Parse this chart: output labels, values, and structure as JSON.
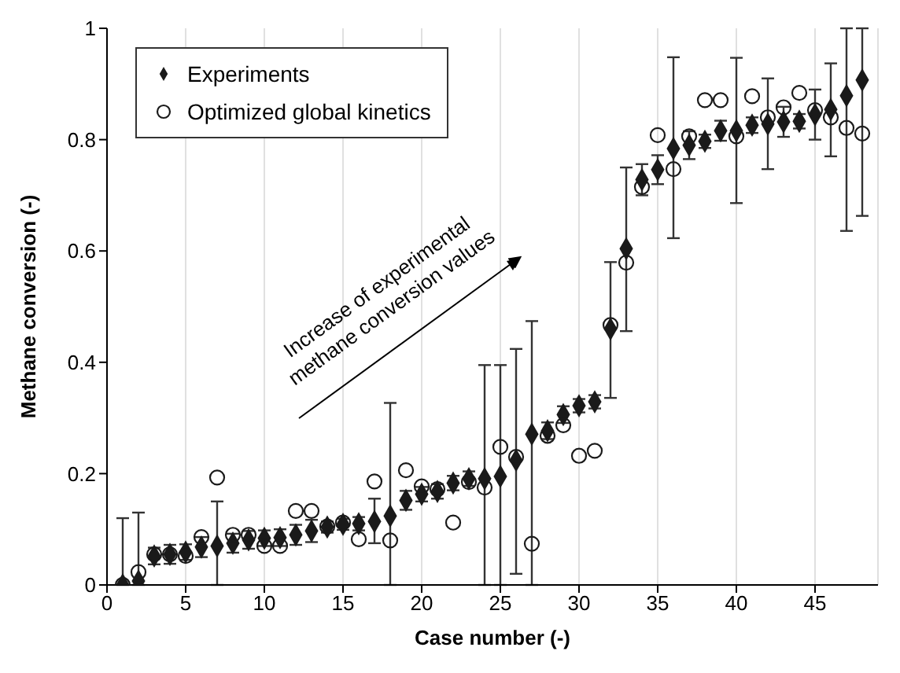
{
  "chart_data": {
    "type": "scatter",
    "xlabel": "Case number (-)",
    "ylabel": "Methane conversion (-)",
    "x": [
      1,
      2,
      3,
      4,
      5,
      6,
      7,
      8,
      9,
      10,
      11,
      12,
      13,
      14,
      15,
      16,
      17,
      18,
      19,
      20,
      21,
      22,
      23,
      24,
      25,
      26,
      27,
      28,
      29,
      30,
      31,
      32,
      33,
      34,
      35,
      36,
      37,
      38,
      39,
      40,
      41,
      42,
      43,
      44,
      45,
      46,
      47,
      48
    ],
    "series": [
      {
        "name": "Experiments",
        "color": "#1a1a1a",
        "marker": "diamond",
        "values": [
          0,
          0.007,
          0.052,
          0.055,
          0.059,
          0.068,
          0.07,
          0.075,
          0.081,
          0.084,
          0.085,
          0.09,
          0.097,
          0.104,
          0.109,
          0.11,
          0.114,
          0.124,
          0.152,
          0.163,
          0.168,
          0.183,
          0.191,
          0.191,
          0.195,
          0.224,
          0.271,
          0.277,
          0.306,
          0.322,
          0.329,
          0.46,
          0.604,
          0.728,
          0.746,
          0.784,
          0.79,
          0.797,
          0.816,
          0.816,
          0.826,
          0.828,
          0.832,
          0.833,
          0.845,
          0.854,
          0.879,
          0.907
        ],
        "errors": [
          [
            0,
            0.12
          ],
          [
            0,
            0.13
          ],
          [
            0.037,
            0.067
          ],
          [
            0.038,
            0.072
          ],
          [
            0.045,
            0.073
          ],
          [
            0.05,
            0.086
          ],
          [
            0,
            0.15
          ],
          [
            0.058,
            0.092
          ],
          [
            0.065,
            0.097
          ],
          [
            0.07,
            0.098
          ],
          [
            0.07,
            0.1
          ],
          [
            0.072,
            0.108
          ],
          [
            0.077,
            0.117
          ],
          [
            0.094,
            0.114
          ],
          [
            0.099,
            0.119
          ],
          [
            0.098,
            0.122
          ],
          [
            0.075,
            0.155
          ],
          [
            0,
            0.327
          ],
          [
            0.135,
            0.169
          ],
          [
            0.15,
            0.176
          ],
          [
            0.155,
            0.181
          ],
          [
            0.17,
            0.196
          ],
          [
            0.178,
            0.204
          ],
          [
            0,
            0.395
          ],
          [
            0,
            0.395
          ],
          [
            0.02,
            0.424
          ],
          [
            0,
            0.474
          ],
          [
            0.262,
            0.292
          ],
          [
            0.291,
            0.321
          ],
          [
            0.31,
            0.334
          ],
          [
            0.317,
            0.341
          ],
          [
            0.336,
            0.58
          ],
          [
            0.456,
            0.75
          ],
          [
            0.7,
            0.756
          ],
          [
            0.72,
            0.772
          ],
          [
            0.623,
            0.948
          ],
          [
            0.765,
            0.815
          ],
          [
            0.785,
            0.809
          ],
          [
            0.798,
            0.834
          ],
          [
            0.686,
            0.947
          ],
          [
            0.812,
            0.84
          ],
          [
            0.747,
            0.91
          ],
          [
            0.805,
            0.859
          ],
          [
            0.82,
            0.846
          ],
          [
            0.8,
            0.89
          ],
          [
            0.77,
            0.937
          ],
          [
            0.636,
            1
          ],
          [
            0.663,
            1
          ]
        ]
      },
      {
        "name": "Optimized global kinetics",
        "color": "#1a1a1a",
        "marker": "circle",
        "values": [
          0,
          0.023,
          0.055,
          0.055,
          0.052,
          0.086,
          0.193,
          0.09,
          0.09,
          0.07,
          0.07,
          0.133,
          0.133,
          0.105,
          0.112,
          0.082,
          0.186,
          0.08,
          0.206,
          0.177,
          0.172,
          0.112,
          0.185,
          0.175,
          0.248,
          0.23,
          0.074,
          0.268,
          0.287,
          0.232,
          0.241,
          0.467,
          0.579,
          0.715,
          0.808,
          0.747,
          0.806,
          0.871,
          0.871,
          0.806,
          0.878,
          0.84,
          0.858,
          0.884,
          0.853,
          0.84,
          0.821,
          0.811
        ]
      }
    ],
    "xlim": [
      0,
      49
    ],
    "xticks": [
      0,
      5,
      10,
      15,
      20,
      25,
      30,
      35,
      40,
      45
    ],
    "ylim": [
      0,
      1
    ],
    "yticks": [
      0,
      0.2,
      0.4,
      0.6,
      0.8,
      1
    ],
    "grid": "x",
    "legend": "top left",
    "annotations": [
      "Increase of experimental\nmethane conversion values"
    ]
  }
}
